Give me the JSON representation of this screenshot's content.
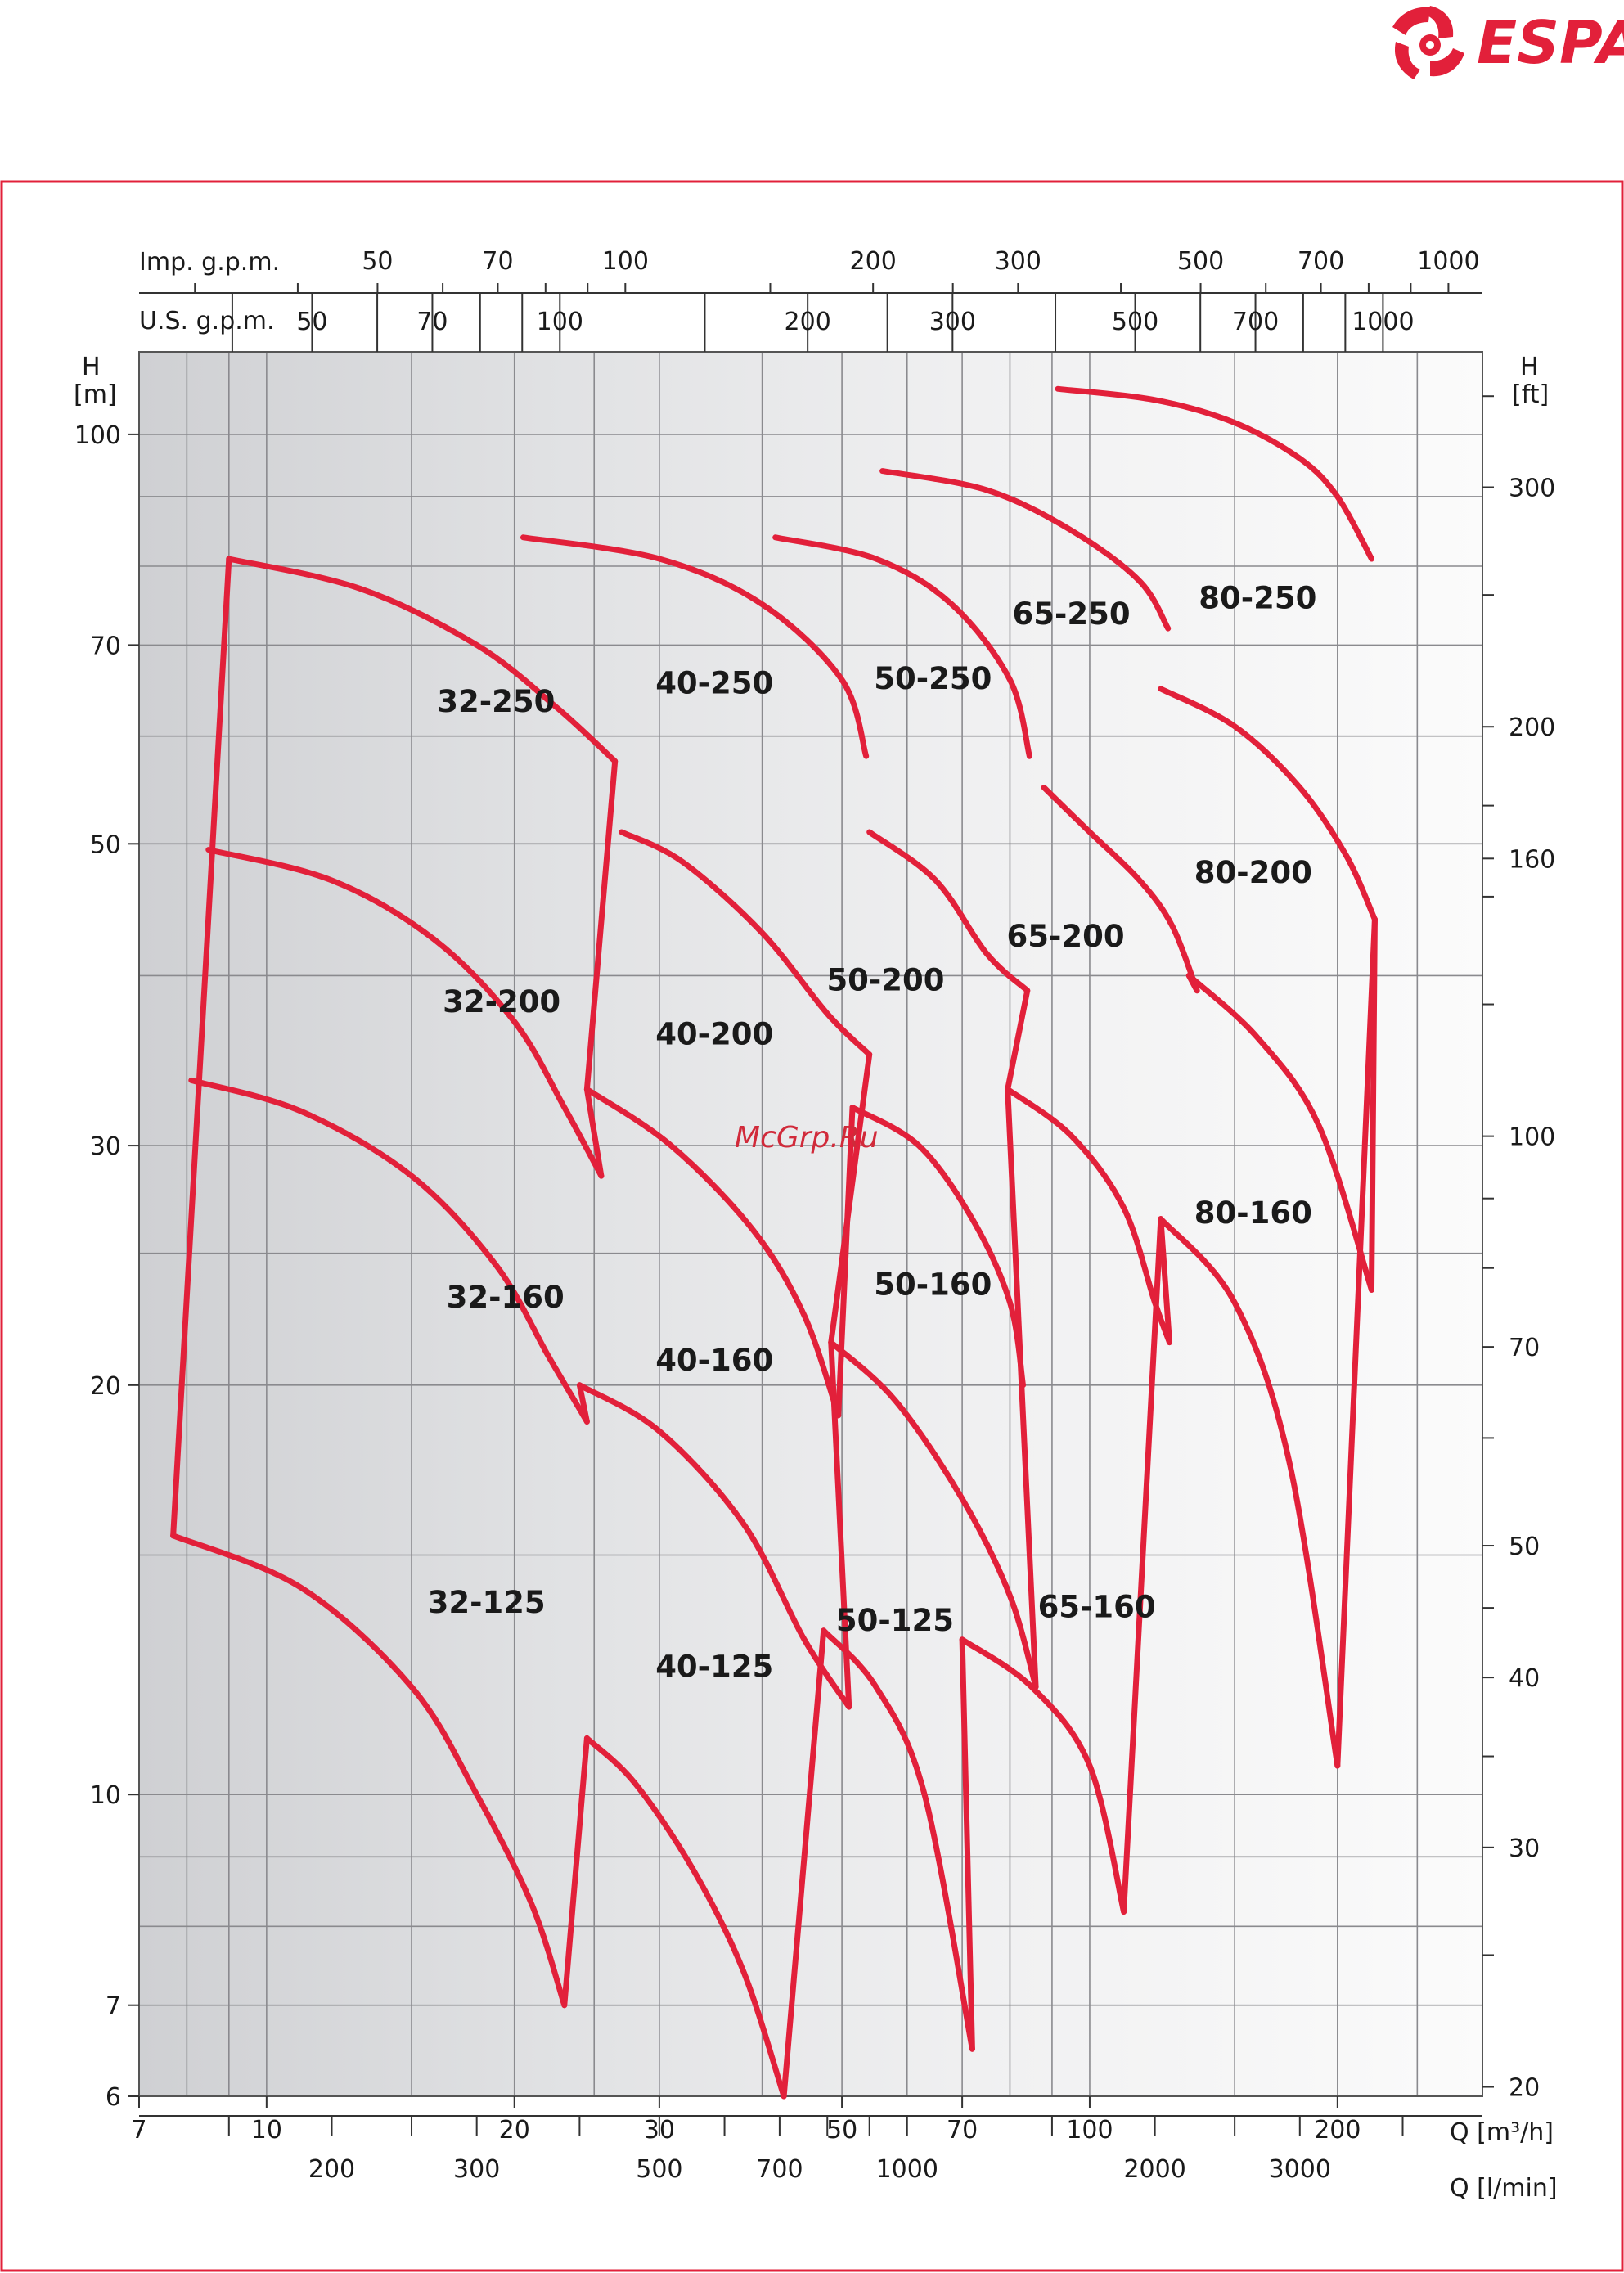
{
  "brand": {
    "name": "ESPA",
    "color": "#e2203a"
  },
  "watermark": "McGrp.Ru",
  "axes": {
    "imp_gpm_label": "Imp. g.p.m.",
    "us_gpm_label": "U.S. g.p.m.",
    "h_m_label_1": "H",
    "h_m_label_2": "[m]",
    "h_ft_label_1": "H",
    "h_ft_label_2": "[ft]",
    "q_m3h_label": "Q [m³/h]",
    "q_lmin_label": "Q [l/min]"
  },
  "chart_data": {
    "type": "line",
    "x_scale": "log",
    "y_scale": "log",
    "xlim": [
      7,
      300
    ],
    "ylim": [
      6,
      115
    ],
    "grid": true,
    "x_ticks_m3h": [
      "7",
      "10",
      "20",
      "30",
      "50",
      "70",
      "100",
      "200"
    ],
    "y_ticks_m": [
      "6",
      "7",
      "10",
      "20",
      "30",
      "50",
      "70",
      "100"
    ],
    "y_ticks_ft": [
      "20",
      "30",
      "40",
      "50",
      "70",
      "100",
      "160",
      "200",
      "300"
    ],
    "x_ticks_lmin": [
      "200",
      "300",
      "500",
      "700",
      "1000",
      "2000",
      "3000"
    ],
    "x_ticks_us_gpm": [
      "50",
      "70",
      "100",
      "200",
      "300",
      "500",
      "700",
      "1000"
    ],
    "x_ticks_imp_gpm": [
      "50",
      "70",
      "100",
      "200",
      "300",
      "500",
      "700",
      "1000"
    ],
    "ft_per_m": 3.28084,
    "lmin_per_m3h": 16.6667,
    "usgpm_per_m3h": 4.40287,
    "impgpm_per_m3h": 3.66615,
    "series_color": "#e2203a",
    "series": [
      {
        "name": "32-125",
        "label_at": [
          18.5,
          13.6
        ],
        "x": [
          7.7,
          11,
          15,
          18,
          21,
          23
        ],
        "y": [
          15.5,
          14.2,
          12.0,
          10.0,
          8.3,
          7.0
        ]
      },
      {
        "name": "32-160",
        "label_at": [
          19.5,
          22.8
        ],
        "x": [
          8.1,
          11,
          15,
          19,
          22,
          24.5
        ],
        "y": [
          33.5,
          31.8,
          28.5,
          24.5,
          21.0,
          18.8
        ]
      },
      {
        "name": "32-200",
        "label_at": [
          19.3,
          37.6
        ],
        "x": [
          8.5,
          12,
          16,
          20,
          23,
          25.5
        ],
        "y": [
          49.5,
          47.0,
          42.5,
          37.0,
          32.0,
          28.5
        ]
      },
      {
        "name": "32-250",
        "label_at": [
          19,
          62.5
        ],
        "x": [
          9.0,
          13,
          18,
          22.5,
          26.5
        ],
        "y": [
          81.0,
          77.0,
          70.0,
          63.0,
          57.5
        ]
      },
      {
        "name": "40-125",
        "label_at": [
          35,
          12.2
        ],
        "x": [
          24.5,
          28,
          33,
          38,
          42.5
        ],
        "y": [
          11.0,
          10.2,
          8.8,
          7.4,
          6.0
        ]
      },
      {
        "name": "40-160",
        "label_at": [
          35,
          20.5
        ],
        "x": [
          24,
          30,
          38,
          45,
          51
        ],
        "y": [
          20.0,
          18.5,
          15.8,
          13.0,
          11.6
        ]
      },
      {
        "name": "40-200",
        "label_at": [
          35,
          35.6
        ],
        "x": [
          24.5,
          31,
          39,
          45,
          49.5
        ],
        "y": [
          33.0,
          30.0,
          26.0,
          22.5,
          19.0
        ]
      },
      {
        "name": "40-250",
        "label_at": [
          35,
          64.5
        ],
        "x": [
          27,
          32,
          40,
          48,
          54
        ],
        "y": [
          51.0,
          48.5,
          43.0,
          37.5,
          35.0
        ]
      },
      {
        "name": "40-250 (wide)",
        "x": [
          20.5,
          30,
          40,
          50,
          53.5
        ],
        "y": [
          84.0,
          81.0,
          75.0,
          66.0,
          58.0
        ]
      },
      {
        "name": "50-125",
        "label_at": [
          58,
          13.2
        ],
        "x": [
          47.5,
          55,
          63,
          72
        ],
        "y": [
          13.2,
          12.0,
          10.0,
          6.5
        ]
      },
      {
        "name": "50-160",
        "label_at": [
          64.5,
          23.3
        ],
        "x": [
          48.5,
          58,
          70,
          80,
          86
        ],
        "y": [
          21.5,
          19.5,
          16.5,
          14.0,
          12.0
        ]
      },
      {
        "name": "50-200",
        "label_at": [
          56.5,
          39.0
        ],
        "x": [
          51.5,
          62,
          72,
          80,
          83
        ],
        "y": [
          32.0,
          30.0,
          26.5,
          23.0,
          20.0
        ]
      },
      {
        "name": "50-250",
        "label_at": [
          64.5,
          65.0
        ],
        "x": [
          54,
          65,
          75,
          84
        ],
        "y": [
          51.0,
          47.0,
          41.5,
          39.0
        ]
      },
      {
        "name": "50-250 (wide)",
        "x": [
          41.5,
          55,
          68,
          80,
          84.5
        ],
        "y": [
          84.0,
          81.0,
          75.0,
          66.0,
          58.0
        ]
      },
      {
        "name": "65-160",
        "label_at": [
          102,
          13.5
        ],
        "x": [
          70,
          85,
          100,
          110
        ],
        "y": [
          13.0,
          12.0,
          10.5,
          8.2
        ]
      },
      {
        "name": "65-200",
        "label_at": [
          93.5,
          42.0
        ],
        "x": [
          79.5,
          95,
          110,
          120,
          125
        ],
        "y": [
          33.0,
          30.5,
          27.0,
          23.0,
          21.5
        ]
      },
      {
        "name": "65-250",
        "label_at": [
          95,
          72.5
        ],
        "x": [
          88,
          100,
          115,
          126,
          135
        ],
        "y": [
          55.0,
          51.0,
          47.0,
          43.5,
          39.0
        ]
      },
      {
        "name": "65-250 (wide)",
        "x": [
          56,
          75,
          95,
          115,
          124.5
        ],
        "y": [
          94.0,
          91.0,
          85.0,
          78.0,
          72.0
        ]
      },
      {
        "name": "80-160",
        "label_at": [
          158,
          26.3
        ],
        "x": [
          122,
          150,
          175,
          200
        ],
        "y": [
          26.5,
          23.0,
          17.5,
          10.5
        ]
      },
      {
        "name": "80-200",
        "label_at": [
          158,
          46.8
        ],
        "x": [
          132,
          160,
          190,
          220
        ],
        "y": [
          40.0,
          36.0,
          31.0,
          23.5
        ]
      },
      {
        "name": "80-250",
        "label_at": [
          160,
          74.5
        ],
        "x": [
          122,
          150,
          180,
          205,
          222
        ],
        "y": [
          65.0,
          61.0,
          55.0,
          49.0,
          44.0
        ]
      },
      {
        "name": "80-250 (wide)",
        "x": [
          91.5,
          120,
          150,
          180,
          200,
          220
        ],
        "y": [
          108.0,
          106.0,
          102.0,
          96.0,
          90.0,
          81.0
        ]
      }
    ]
  }
}
